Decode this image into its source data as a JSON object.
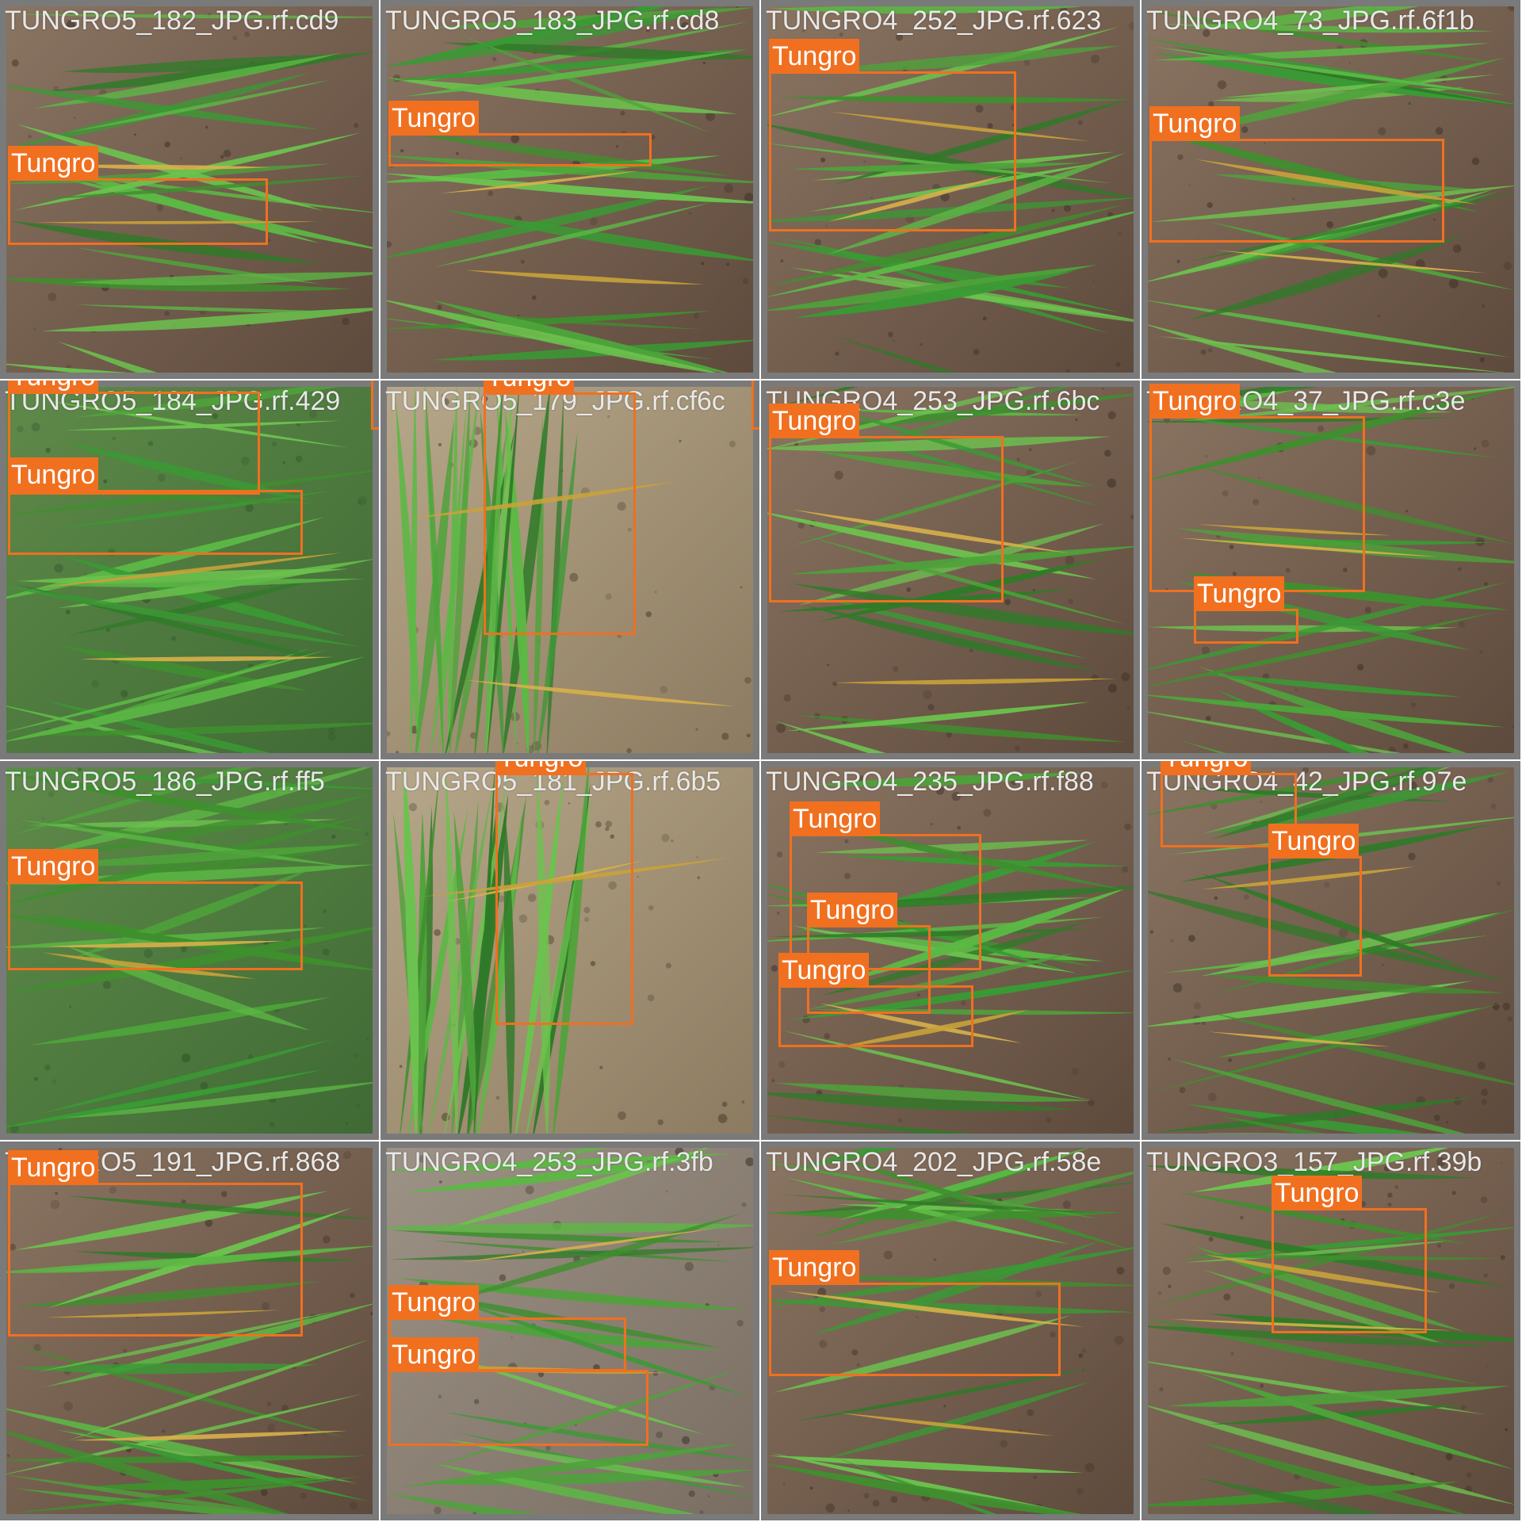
{
  "palette": {
    "box": "#f07020",
    "label_text": "#ffffff",
    "tile_border": "#ffffff",
    "background": "#7a7a7a"
  },
  "tiles": [
    {
      "filename": "TUNGRO5_182_JPG.rf.cd9",
      "scene": "soil",
      "labels": [
        "Tungro"
      ]
    },
    {
      "filename": "TUNGRO5_183_JPG.rf.cd8",
      "scene": "soil",
      "labels": [
        "Tungro"
      ]
    },
    {
      "filename": "TUNGRO4_252_JPG.rf.623",
      "scene": "soil",
      "labels": [
        "Tungro"
      ]
    },
    {
      "filename": "TUNGRO4_73_JPG.rf.6f1b",
      "scene": "soil",
      "labels": [
        "Tungro"
      ]
    },
    {
      "filename": "TUNGRO5_184_JPG.rf.429",
      "scene": "grass",
      "labels": [
        "Tungro",
        "Tungro",
        "Tungro"
      ]
    },
    {
      "filename": "TUNGRO5_179_JPG.rf.cf6c",
      "scene": "sand",
      "labels": [
        "Tungro",
        "Tungro"
      ]
    },
    {
      "filename": "TUNGRO4_253_JPG.rf.6bc",
      "scene": "soil",
      "labels": [
        "Tungro"
      ]
    },
    {
      "filename": "TUNGRO4_37_JPG.rf.c3e",
      "scene": "soil",
      "labels": [
        "Tungro",
        "Tungro"
      ]
    },
    {
      "filename": "TUNGRO5_186_JPG.rf.ff5",
      "scene": "grass",
      "labels": [
        "Tungro"
      ]
    },
    {
      "filename": "TUNGRO5_181_JPG.rf.6b5",
      "scene": "sand",
      "labels": [
        "Tungro"
      ]
    },
    {
      "filename": "TUNGRO4_235_JPG.rf.f88",
      "scene": "soil",
      "labels": [
        "Tungro",
        "Tungro",
        "Tungro"
      ]
    },
    {
      "filename": "TUNGRO4_42_JPG.rf.97e",
      "scene": "soil",
      "labels": [
        "Tungro",
        "Tungro"
      ]
    },
    {
      "filename": "TUNGRO5_191_JPG.rf.868",
      "scene": "soil",
      "labels": [
        "Tungro"
      ]
    },
    {
      "filename": "TUNGRO4_253_JPG.rf.3fb",
      "scene": "gravel",
      "labels": [
        "Tungro",
        "Tungro"
      ]
    },
    {
      "filename": "TUNGRO4_202_JPG.rf.58e",
      "scene": "soil",
      "labels": [
        "Tungro"
      ]
    },
    {
      "filename": "TUNGRO3_157_JPG.rf.39b",
      "scene": "soil",
      "labels": [
        "Tungro"
      ]
    }
  ]
}
